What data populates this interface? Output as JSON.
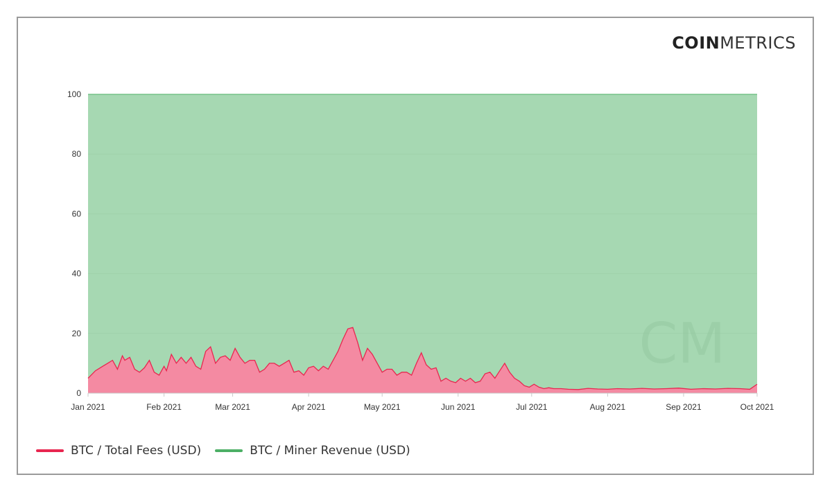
{
  "logo": {
    "bold": "COIN",
    "light": "METRICS"
  },
  "watermark": "CM",
  "legend": [
    {
      "label": "BTC / Total Fees (USD)",
      "color": "#e8264f"
    },
    {
      "label": "BTC / Miner Revenue (USD)",
      "color": "#4caf65"
    }
  ],
  "chart_data": {
    "type": "area",
    "title": "",
    "xlabel": "",
    "ylabel": "",
    "ylim": [
      0,
      100
    ],
    "yticks": [
      0,
      20,
      40,
      60,
      80,
      100
    ],
    "xlim": [
      "2021-01-01",
      "2021-10-01"
    ],
    "xticks": [
      {
        "date": "2021-01-01",
        "label": "Jan 2021"
      },
      {
        "date": "2021-02-01",
        "label": "Feb 2021"
      },
      {
        "date": "2021-03-01",
        "label": "Mar 2021"
      },
      {
        "date": "2021-04-01",
        "label": "Apr 2021"
      },
      {
        "date": "2021-05-01",
        "label": "May 2021"
      },
      {
        "date": "2021-06-01",
        "label": "Jun 2021"
      },
      {
        "date": "2021-07-01",
        "label": "Jul 2021"
      },
      {
        "date": "2021-08-01",
        "label": "Aug 2021"
      },
      {
        "date": "2021-09-01",
        "label": "Sep 2021"
      },
      {
        "date": "2021-10-01",
        "label": "Oct 2021"
      }
    ],
    "stacked_percent": true,
    "grid": true,
    "legend_position": "bottom-left",
    "series": [
      {
        "name": "BTC / Total Fees (USD)",
        "color": "#e8264f",
        "fill": "#f48aa2",
        "x": [
          "2021-01-01",
          "2021-01-04",
          "2021-01-07",
          "2021-01-09",
          "2021-01-11",
          "2021-01-13",
          "2021-01-15",
          "2021-01-16",
          "2021-01-18",
          "2021-01-20",
          "2021-01-22",
          "2021-01-24",
          "2021-01-26",
          "2021-01-28",
          "2021-01-30",
          "2021-02-01",
          "2021-02-02",
          "2021-02-04",
          "2021-02-06",
          "2021-02-08",
          "2021-02-10",
          "2021-02-12",
          "2021-02-14",
          "2021-02-16",
          "2021-02-18",
          "2021-02-20",
          "2021-02-22",
          "2021-02-24",
          "2021-02-26",
          "2021-02-28",
          "2021-03-02",
          "2021-03-04",
          "2021-03-06",
          "2021-03-08",
          "2021-03-10",
          "2021-03-12",
          "2021-03-14",
          "2021-03-16",
          "2021-03-18",
          "2021-03-20",
          "2021-03-22",
          "2021-03-24",
          "2021-03-26",
          "2021-03-28",
          "2021-03-30",
          "2021-04-01",
          "2021-04-03",
          "2021-04-05",
          "2021-04-07",
          "2021-04-09",
          "2021-04-11",
          "2021-04-13",
          "2021-04-15",
          "2021-04-17",
          "2021-04-19",
          "2021-04-21",
          "2021-04-23",
          "2021-04-25",
          "2021-04-27",
          "2021-04-29",
          "2021-05-01",
          "2021-05-03",
          "2021-05-05",
          "2021-05-07",
          "2021-05-09",
          "2021-05-11",
          "2021-05-13",
          "2021-05-15",
          "2021-05-17",
          "2021-05-19",
          "2021-05-21",
          "2021-05-23",
          "2021-05-25",
          "2021-05-27",
          "2021-05-29",
          "2021-05-31",
          "2021-06-02",
          "2021-06-04",
          "2021-06-06",
          "2021-06-08",
          "2021-06-10",
          "2021-06-12",
          "2021-06-14",
          "2021-06-16",
          "2021-06-18",
          "2021-06-20",
          "2021-06-22",
          "2021-06-24",
          "2021-06-26",
          "2021-06-28",
          "2021-06-30",
          "2021-07-02",
          "2021-07-04",
          "2021-07-06",
          "2021-07-08",
          "2021-07-10",
          "2021-07-13",
          "2021-07-16",
          "2021-07-20",
          "2021-07-24",
          "2021-07-28",
          "2021-08-01",
          "2021-08-05",
          "2021-08-10",
          "2021-08-15",
          "2021-08-20",
          "2021-08-25",
          "2021-08-30",
          "2021-09-04",
          "2021-09-09",
          "2021-09-14",
          "2021-09-19",
          "2021-09-24",
          "2021-09-28",
          "2021-10-01"
        ],
        "values": [
          5,
          7.5,
          9,
          10,
          11,
          8,
          12.5,
          11,
          12,
          8,
          7,
          8.5,
          11,
          7,
          6,
          9,
          7.5,
          13,
          10,
          12,
          10,
          12,
          9,
          8,
          14,
          15.5,
          10,
          12,
          12.5,
          11,
          15,
          12,
          10,
          11,
          11,
          7,
          8,
          10,
          10,
          9,
          10,
          11,
          7,
          7.5,
          6,
          8.5,
          9,
          7.5,
          9,
          8,
          11,
          14,
          18,
          21.5,
          22,
          17,
          11,
          15,
          13,
          10,
          7,
          8,
          8,
          6,
          7,
          7,
          6,
          10,
          13.5,
          9.5,
          8,
          8.5,
          4,
          5,
          4,
          3.5,
          5,
          4,
          5,
          3.5,
          4,
          6.5,
          7,
          5,
          7.5,
          10,
          7,
          5,
          4,
          2.5,
          2,
          3,
          2,
          1.5,
          1.8,
          1.5,
          1.5,
          1.3,
          1.2,
          1.6,
          1.4,
          1.3,
          1.5,
          1.4,
          1.6,
          1.4,
          1.5,
          1.7,
          1.3,
          1.5,
          1.4,
          1.6,
          1.5,
          1.3,
          3
        ]
      },
      {
        "name": "BTC / Miner Revenue (USD)",
        "color": "#4caf65",
        "fill": "#a6d8b2",
        "complement_to": 100
      }
    ]
  }
}
